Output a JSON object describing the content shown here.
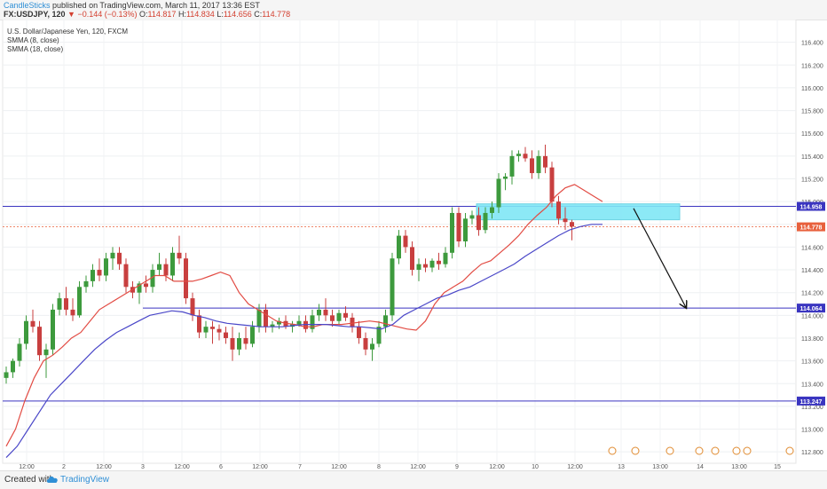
{
  "header": {
    "author": "CandleSticks",
    "published_text": " published on TradingView.com, March 11, 2017 13:36 EST",
    "symbol": "FX:USDJPY, 120",
    "change": "▼ −0.144 (−0.13%)",
    "ohlc": {
      "o_label": "O:",
      "o": "114.817",
      "h_label": "H:",
      "h": "114.834",
      "l_label": "L:",
      "l": "114.656",
      "c_label": "C:",
      "c": "114.778"
    }
  },
  "legend": {
    "title": "U.S. Dollar/Japanese Yen, 120, FXCM",
    "sma_fast": "SMMA (8, close)",
    "sma_slow": "SMMA (18, close)"
  },
  "footer": {
    "created": "Created with",
    "brand": "TradingView"
  },
  "colors": {
    "up": "#3d9a3d",
    "down": "#c83f3f",
    "sma_fast": "#e24b43",
    "sma_slow": "#4a47c8",
    "hline": "#3a35c0",
    "zone": "#7fe7f5",
    "price_line": "#e8603c"
  },
  "chart_data": {
    "type": "candlestick",
    "symbol": "USDJPY",
    "timeframe": "120",
    "ylim": [
      112.7,
      116.6
    ],
    "y_ticks": [
      "116.400",
      "116.200",
      "116.000",
      "115.800",
      "115.600",
      "115.400",
      "115.200",
      "115.000",
      "114.800",
      "114.600",
      "114.400",
      "114.200",
      "114.000",
      "113.800",
      "113.600",
      "113.400",
      "113.200",
      "113.000",
      "112.800"
    ],
    "x_ticks": [
      "12:00",
      "2",
      "12:00",
      "3",
      "12:00",
      "6",
      "12:00",
      "7",
      "12:00",
      "8",
      "12:00",
      "9",
      "12:00",
      "10",
      "12:00",
      "13",
      "13:00",
      "14",
      "13:00",
      "15"
    ],
    "candles": [
      [
        113.45,
        113.55,
        113.4,
        113.5
      ],
      [
        113.5,
        113.62,
        113.45,
        113.6
      ],
      [
        113.6,
        113.8,
        113.55,
        113.75
      ],
      [
        113.75,
        114.0,
        113.7,
        113.95
      ],
      [
        113.95,
        114.05,
        113.85,
        113.9
      ],
      [
        113.9,
        113.95,
        113.6,
        113.65
      ],
      [
        113.65,
        113.75,
        113.45,
        113.7
      ],
      [
        113.7,
        114.1,
        113.65,
        114.05
      ],
      [
        114.05,
        114.2,
        114.0,
        114.15
      ],
      [
        114.15,
        114.25,
        114.0,
        114.05
      ],
      [
        114.05,
        114.15,
        113.95,
        114.0
      ],
      [
        114.0,
        114.3,
        113.98,
        114.25
      ],
      [
        114.25,
        114.35,
        114.2,
        114.3
      ],
      [
        114.3,
        114.45,
        114.25,
        114.4
      ],
      [
        114.4,
        114.5,
        114.3,
        114.35
      ],
      [
        114.35,
        114.55,
        114.3,
        114.5
      ],
      [
        114.5,
        114.6,
        114.4,
        114.55
      ],
      [
        114.55,
        114.6,
        114.4,
        114.45
      ],
      [
        114.45,
        114.5,
        114.2,
        114.25
      ],
      [
        114.25,
        114.3,
        114.15,
        114.2
      ],
      [
        114.2,
        114.3,
        114.1,
        114.28
      ],
      [
        114.28,
        114.35,
        114.2,
        114.25
      ],
      [
        114.25,
        114.45,
        114.2,
        114.4
      ],
      [
        114.4,
        114.55,
        114.35,
        114.45
      ],
      [
        114.45,
        114.5,
        114.3,
        114.35
      ],
      [
        114.35,
        114.6,
        114.3,
        114.55
      ],
      [
        114.55,
        114.7,
        114.45,
        114.5
      ],
      [
        114.5,
        114.55,
        114.1,
        114.15
      ],
      [
        114.15,
        114.2,
        113.95,
        114.0
      ],
      [
        114.0,
        114.05,
        113.8,
        113.85
      ],
      [
        113.85,
        113.95,
        113.8,
        113.9
      ],
      [
        113.9,
        113.95,
        113.75,
        113.88
      ],
      [
        113.88,
        113.92,
        113.78,
        113.85
      ],
      [
        113.85,
        113.9,
        113.75,
        113.8
      ],
      [
        113.8,
        113.9,
        113.6,
        113.7
      ],
      [
        113.7,
        113.85,
        113.65,
        113.8
      ],
      [
        113.8,
        113.9,
        113.7,
        113.75
      ],
      [
        113.75,
        113.95,
        113.72,
        113.9
      ],
      [
        113.9,
        114.1,
        113.85,
        114.05
      ],
      [
        114.05,
        114.1,
        113.85,
        113.9
      ],
      [
        113.9,
        113.95,
        113.85,
        113.92
      ],
      [
        113.92,
        113.98,
        113.88,
        113.95
      ],
      [
        113.95,
        114.0,
        113.88,
        113.9
      ],
      [
        113.9,
        113.95,
        113.85,
        113.92
      ],
      [
        113.92,
        114.0,
        113.9,
        113.95
      ],
      [
        113.95,
        114.0,
        113.85,
        113.88
      ],
      [
        113.88,
        114.05,
        113.85,
        114.0
      ],
      [
        114.0,
        114.1,
        113.95,
        114.05
      ],
      [
        114.05,
        114.15,
        113.95,
        114.0
      ],
      [
        114.0,
        114.05,
        113.9,
        113.95
      ],
      [
        113.95,
        114.05,
        113.92,
        114.02
      ],
      [
        114.02,
        114.08,
        113.95,
        113.98
      ],
      [
        113.98,
        114.02,
        113.85,
        113.9
      ],
      [
        113.9,
        113.95,
        113.75,
        113.8
      ],
      [
        113.8,
        113.85,
        113.65,
        113.7
      ],
      [
        113.7,
        113.8,
        113.6,
        113.75
      ],
      [
        113.75,
        113.95,
        113.72,
        113.9
      ],
      [
        113.9,
        114.05,
        113.85,
        114.0
      ],
      [
        114.0,
        114.55,
        113.95,
        114.5
      ],
      [
        114.5,
        114.75,
        114.45,
        114.7
      ],
      [
        114.7,
        114.75,
        114.55,
        114.6
      ],
      [
        114.6,
        114.65,
        114.35,
        114.4
      ],
      [
        114.4,
        114.5,
        114.3,
        114.45
      ],
      [
        114.45,
        114.5,
        114.38,
        114.42
      ],
      [
        114.42,
        114.5,
        114.38,
        114.48
      ],
      [
        114.48,
        114.55,
        114.4,
        114.45
      ],
      [
        114.45,
        114.6,
        114.42,
        114.55
      ],
      [
        114.55,
        114.95,
        114.5,
        114.9
      ],
      [
        114.9,
        114.95,
        114.6,
        114.65
      ],
      [
        114.65,
        114.9,
        114.6,
        114.85
      ],
      [
        114.85,
        114.92,
        114.8,
        114.88
      ],
      [
        114.88,
        114.95,
        114.7,
        114.75
      ],
      [
        114.75,
        114.95,
        114.72,
        114.9
      ],
      [
        114.9,
        115.0,
        114.85,
        114.95
      ],
      [
        114.95,
        115.25,
        114.9,
        115.2
      ],
      [
        115.2,
        115.25,
        115.1,
        115.22
      ],
      [
        115.22,
        115.45,
        115.15,
        115.4
      ],
      [
        115.4,
        115.45,
        115.35,
        115.42
      ],
      [
        115.42,
        115.48,
        115.35,
        115.38
      ],
      [
        115.38,
        115.45,
        115.2,
        115.25
      ],
      [
        115.25,
        115.45,
        115.2,
        115.4
      ],
      [
        115.4,
        115.5,
        115.25,
        115.3
      ],
      [
        115.3,
        115.35,
        114.95,
        115.0
      ],
      [
        115.0,
        115.05,
        114.8,
        114.85
      ],
      [
        114.85,
        114.95,
        114.75,
        114.82
      ],
      [
        114.82,
        114.84,
        114.66,
        114.78
      ]
    ],
    "smma_8": [
      112.85,
      113.0,
      113.25,
      113.45,
      113.6,
      113.65,
      113.72,
      113.8,
      113.85,
      113.95,
      114.05,
      114.1,
      114.15,
      114.2,
      114.25,
      114.3,
      114.35,
      114.35,
      114.3,
      114.3,
      114.3,
      114.32,
      114.35,
      114.38,
      114.35,
      114.2,
      114.1,
      114.05,
      114.0,
      113.95,
      113.93,
      113.92,
      113.9,
      113.9,
      113.92,
      113.92,
      113.92,
      113.93,
      113.94,
      113.95,
      113.94,
      113.92,
      113.9,
      113.88,
      113.87,
      113.95,
      114.1,
      114.2,
      114.25,
      114.3,
      114.38,
      114.45,
      114.48,
      114.55,
      114.62,
      114.7,
      114.8,
      114.88,
      114.95,
      115.05,
      115.12,
      115.15,
      115.1,
      115.05,
      115.0
    ],
    "smma_18": [
      112.75,
      112.85,
      113.0,
      113.15,
      113.3,
      113.4,
      113.5,
      113.6,
      113.7,
      113.78,
      113.85,
      113.9,
      113.95,
      114.0,
      114.02,
      114.04,
      114.03,
      114.0,
      113.98,
      113.95,
      113.93,
      113.92,
      113.91,
      113.9,
      113.9,
      113.9,
      113.91,
      113.92,
      113.92,
      113.92,
      113.91,
      113.9,
      113.9,
      113.89,
      113.88,
      113.92,
      114.0,
      114.05,
      114.1,
      114.15,
      114.18,
      114.22,
      114.25,
      114.3,
      114.35,
      114.4,
      114.45,
      114.52,
      114.58,
      114.64,
      114.7,
      114.75,
      114.78,
      114.8,
      114.8
    ],
    "horizontal_levels": [
      114.958,
      114.064,
      113.247
    ],
    "level_labels": [
      "114.958",
      "114.064",
      "113.247"
    ],
    "current_price": 114.778,
    "current_price_label": "114.778",
    "resistance_zone": [
      114.84,
      114.98
    ],
    "projection_arrow": {
      "from": 114.94,
      "to": 114.07
    }
  }
}
